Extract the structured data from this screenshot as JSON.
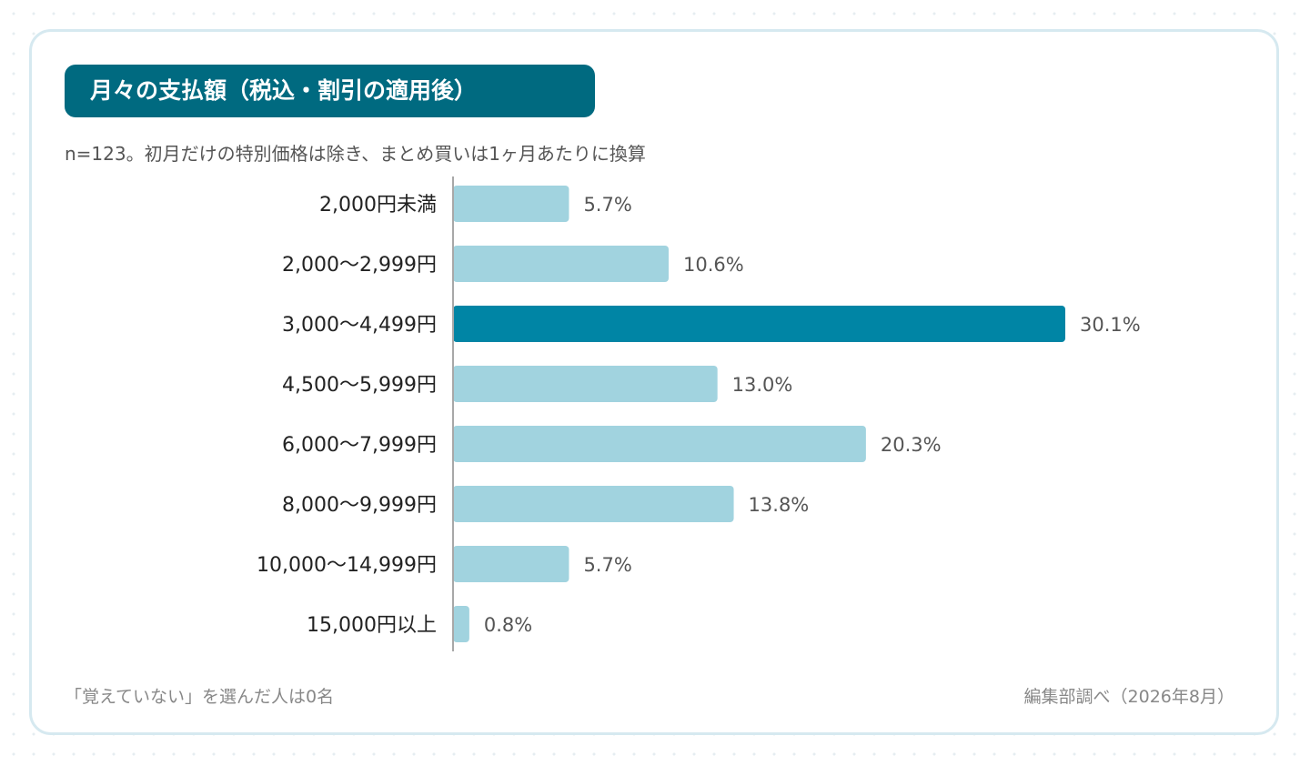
{
  "header": {
    "title": "月々の支払額（税込・割引の適用後）",
    "subtitle": "n=123。初月だけの特別価格は除き、まとめ買いは1ヶ月あたりに換算"
  },
  "footer": {
    "note": "「覚えていない」を選んだ人は0名",
    "source": "編集部調べ（2026年8月）"
  },
  "colors": {
    "accent": "#0085a5",
    "bar": "#a1d3df",
    "title_bg": "#006a80",
    "axis": "#a8a8a8"
  },
  "chart_data": {
    "type": "bar",
    "orientation": "horizontal",
    "title": "月々の支払額（税込・割引の適用後）",
    "subtitle": "n=123。初月だけの特別価格は除き、まとめ買いは1ヶ月あたりに換算",
    "categories": [
      "2,000円未満",
      "2,000〜2,999円",
      "3,000〜4,499円",
      "4,500〜5,999円",
      "6,000〜7,999円",
      "8,000〜9,999円",
      "10,000〜14,999円",
      "15,000円以上"
    ],
    "values": [
      5.7,
      10.6,
      30.1,
      13.0,
      20.3,
      13.8,
      5.7,
      0.8
    ],
    "value_labels": [
      "5.7%",
      "10.6%",
      "30.1%",
      "13.0%",
      "20.3%",
      "13.8%",
      "5.7%",
      "0.8%"
    ],
    "highlight_index": 2,
    "unit": "%",
    "xlim": [
      0,
      30.1
    ],
    "grid": false,
    "legend": "none"
  }
}
